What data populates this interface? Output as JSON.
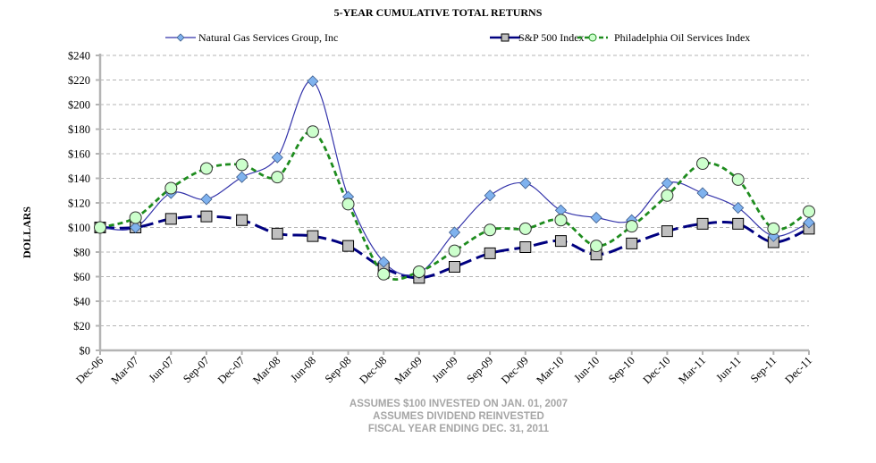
{
  "chart_data": {
    "type": "line",
    "title": "5-YEAR CUMULATIVE  TOTAL RETURNS",
    "xlabel": "",
    "ylabel": "DOLLARS",
    "ylim": [
      0,
      240
    ],
    "ytick_step": 20,
    "ytick_prefix": "$",
    "grid": true,
    "legend_position": "top-center",
    "categories": [
      "Dec-06",
      "Mar-07",
      "Jun-07",
      "Sep-07",
      "Dec-07",
      "Mar-08",
      "Jun-08",
      "Sep-08",
      "Dec-08",
      "Mar-09",
      "Jun-09",
      "Sep-09",
      "Dec-09",
      "Mar-10",
      "Jun-10",
      "Sep-10",
      "Dec-10",
      "Mar-11",
      "Jun-11",
      "Sep-11",
      "Dec-11"
    ],
    "series": [
      {
        "name": "Natural Gas Services  Group, Inc",
        "marker": "diamond",
        "line_style": "solid",
        "color": "#3333aa",
        "marker_fill": "#7fb2ee",
        "values": [
          100,
          100,
          128,
          123,
          141,
          157,
          219,
          125,
          72,
          63,
          96,
          126,
          136,
          114,
          108,
          106,
          136,
          128,
          116,
          93,
          104
        ]
      },
      {
        "name": "S&P 500 Index",
        "marker": "square",
        "line_style": "long-dash",
        "color": "#000080",
        "marker_fill": "#bfbfbf",
        "values": [
          100,
          100,
          107,
          109,
          106,
          95,
          93,
          85,
          67,
          59,
          68,
          79,
          84,
          89,
          78,
          87,
          97,
          103,
          103,
          88,
          99
        ]
      },
      {
        "name": "Philadelphia Oil Services  Index",
        "marker": "circle",
        "line_style": "dash",
        "color": "#1e8c1e",
        "marker_fill": "#ccffcc",
        "values": [
          100,
          108,
          132,
          148,
          151,
          141,
          178,
          119,
          62,
          64,
          81,
          98,
          99,
          106,
          85,
          101,
          126,
          152,
          139,
          99,
          113
        ]
      }
    ],
    "annotations": [
      "ASSUMES $100 INVESTED ON JAN. 01, 2007",
      "ASSUMES DIVIDEND REINVESTED",
      "FISCAL YEAR ENDING DEC. 31, 2011"
    ]
  }
}
